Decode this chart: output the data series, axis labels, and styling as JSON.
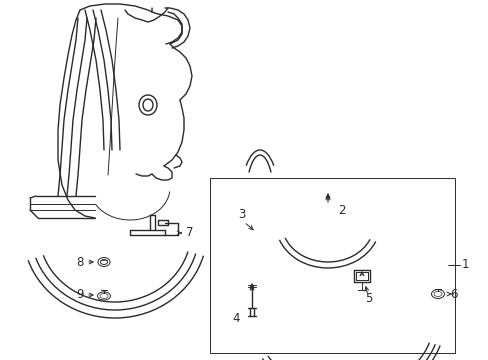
{
  "bg_color": "#ffffff",
  "lc": "#2a2a2a",
  "fig_w": 4.89,
  "fig_h": 3.6,
  "dpi": 100,
  "lw": 1.0,
  "lw_thin": 0.7,
  "font_size": 8.5
}
